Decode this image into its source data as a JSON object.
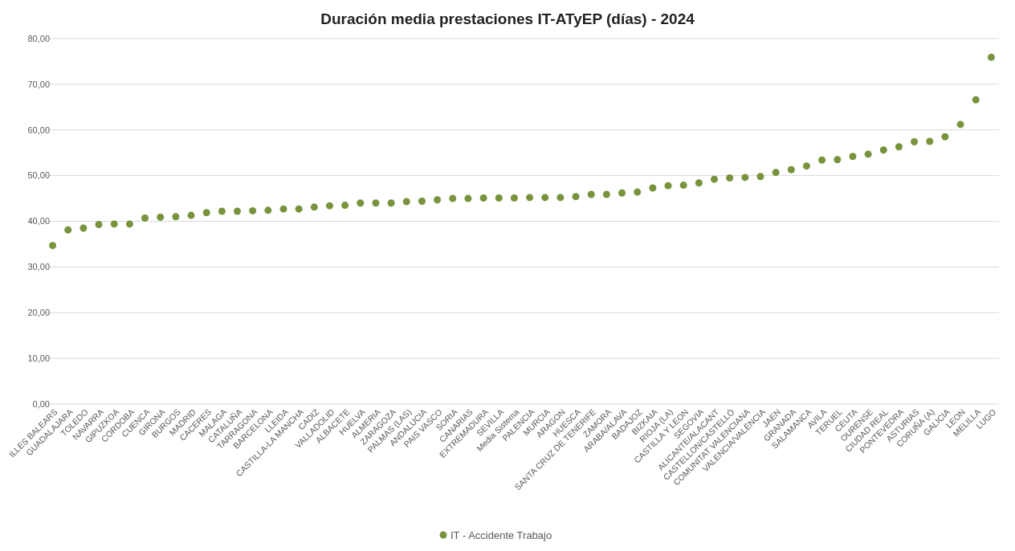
{
  "chart_data": {
    "type": "scatter",
    "title": "Duración media prestaciones IT-ATyEP (días) - 2024",
    "categories": [
      "ILLES BALEARS",
      "GUADALAJARA",
      "TOLEDO",
      "NAVARRA",
      "GIPUZKOA",
      "CORDOBA",
      "CUENCA",
      "GIRONA",
      "BURGOS",
      "MADRID",
      "CACERES",
      "MALAGA",
      "CATALUÑA",
      "TARRAGONA",
      "BARCELONA",
      "LLEIDA",
      "CASTILLA-LA MANCHA",
      "CADIZ",
      "VALLADOLID",
      "ALBACETE",
      "HUELVA",
      "ALMERIA",
      "ZARAGOZA",
      "PALMAS (LAS)",
      "ANDALUCIA",
      "PAIS VASCO",
      "SORIA",
      "CANARIAS",
      "EXTREMADURA",
      "SEVILLA",
      "Media Sistema",
      "PALENCIA",
      "MURCIA",
      "ARAGON",
      "HUESCA",
      "SANTA CRUZ DE TENERIFE",
      "ZAMORA",
      "ARABA/ALAVA",
      "BADAJOZ",
      "BIZKAIA",
      "RIOJA (LA)",
      "CASTILLA Y LEON",
      "SEGOVIA",
      "ALICANTE/ALACANT",
      "CASTELLON/CASTELLÓ",
      "COMUNITAT VALENCIANA",
      "VALENCIA/VALÈNCIA",
      "JAEN",
      "GRANADA",
      "SALAMANCA",
      "AVILA",
      "TERUEL",
      "CEUTA",
      "OURENSE",
      "CIUDAD REAL",
      "PONTEVEDRA",
      "ASTURIAS",
      "CORUÑA (A)",
      "GALICIA",
      "LEON",
      "MELILLA",
      "LUGO"
    ],
    "series": [
      {
        "name": "IT - Accidente Trabajo",
        "color": "#77933c",
        "values": [
          34.7,
          38.1,
          38.5,
          39.3,
          39.4,
          39.4,
          40.7,
          40.9,
          41.0,
          41.3,
          41.9,
          42.2,
          42.2,
          42.3,
          42.4,
          42.7,
          42.7,
          43.1,
          43.4,
          43.5,
          44.0,
          44.0,
          44.0,
          44.3,
          44.4,
          44.7,
          45.0,
          45.0,
          45.1,
          45.1,
          45.1,
          45.2,
          45.2,
          45.2,
          45.4,
          45.9,
          45.9,
          46.2,
          46.4,
          47.3,
          47.8,
          47.9,
          48.4,
          49.2,
          49.5,
          49.6,
          49.8,
          50.7,
          51.3,
          52.1,
          53.4,
          53.5,
          54.2,
          54.7,
          55.6,
          56.3,
          57.4,
          57.5,
          58.5,
          61.2,
          66.6,
          75.9
        ]
      }
    ],
    "ylim": [
      0,
      80
    ],
    "yticks": [
      {
        "value": 0,
        "label": "0,00"
      },
      {
        "value": 10,
        "label": "10,00"
      },
      {
        "value": 20,
        "label": "20,00"
      },
      {
        "value": 30,
        "label": "30,00"
      },
      {
        "value": 40,
        "label": "40,00"
      },
      {
        "value": 50,
        "label": "50,00"
      },
      {
        "value": 60,
        "label": "60,00"
      },
      {
        "value": 70,
        "label": "70,00"
      },
      {
        "value": 80,
        "label": "80,00"
      }
    ],
    "grid": "y",
    "legend": "bottom",
    "marker": "circle"
  }
}
